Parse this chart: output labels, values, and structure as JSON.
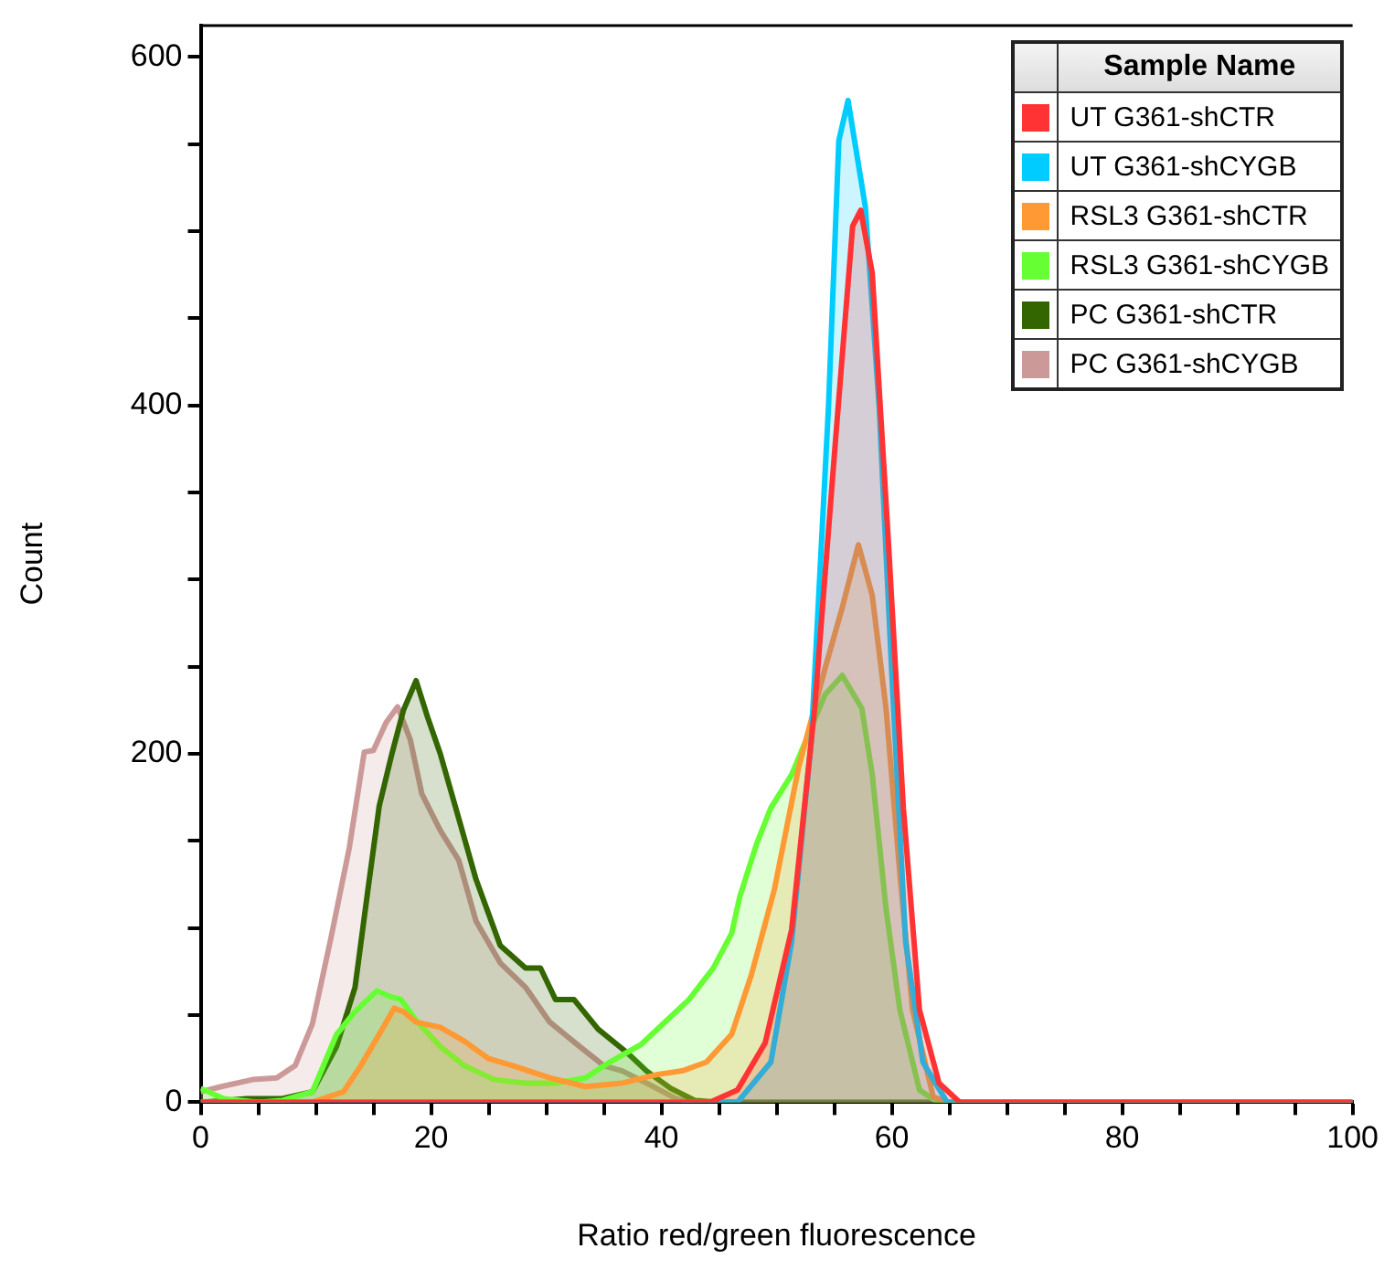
{
  "chart_data": {
    "type": "area",
    "xlabel": "Ratio red/green fluorescence",
    "ylabel": "Count",
    "legend_title": "Sample Name",
    "legend": "top right",
    "grid": false,
    "marker": "none",
    "xlim": [
      0,
      100
    ],
    "ylim": [
      0,
      618
    ],
    "xticks": [
      0,
      {
        "value": 5,
        "label": null
      },
      {
        "value": 10,
        "label": null
      },
      {
        "value": 15,
        "label": null
      },
      20,
      {
        "value": 25,
        "label": null
      },
      {
        "value": 30,
        "label": null
      },
      {
        "value": 35,
        "label": null
      },
      40,
      {
        "value": 45,
        "label": null
      },
      {
        "value": 50,
        "label": null
      },
      {
        "value": 55,
        "label": null
      },
      60,
      {
        "value": 65,
        "label": null
      },
      {
        "value": 70,
        "label": null
      },
      {
        "value": 75,
        "label": null
      },
      80,
      {
        "value": 85,
        "label": null
      },
      {
        "value": 90,
        "label": null
      },
      {
        "value": 95,
        "label": null
      },
      100
    ],
    "yticks": [
      0,
      {
        "value": 50,
        "label": null
      },
      {
        "value": 100,
        "label": null
      },
      {
        "value": 150,
        "label": null
      },
      200,
      {
        "value": 250,
        "label": null
      },
      {
        "value": 300,
        "label": null
      },
      {
        "value": 350,
        "label": null
      },
      400,
      {
        "value": 450,
        "label": null
      },
      {
        "value": 500,
        "label": null
      },
      {
        "value": 550,
        "label": null
      },
      600
    ],
    "series": [
      {
        "name": "UT G361-shCTR",
        "color": "#ff3333",
        "x": [
          0,
          44.2,
          46.6,
          49,
          51.3,
          53.3,
          55.1,
          56.6,
          57.3,
          58.3,
          59.7,
          61,
          62.4,
          64.1,
          65.9,
          100
        ],
        "values": [
          0,
          0,
          7,
          34,
          99,
          226,
          379,
          503,
          512,
          476,
          322,
          169,
          53,
          11,
          0,
          0
        ]
      },
      {
        "name": "UT G361-shCYGB",
        "color": "#00ccff",
        "x": [
          0,
          46.6,
          49.5,
          51.3,
          53,
          54.5,
          55.4,
          56.2,
          57.7,
          58.9,
          60,
          61.2,
          62.7,
          64.8,
          100
        ],
        "values": [
          0,
          0,
          23,
          92,
          207,
          399,
          552,
          575,
          514,
          399,
          246,
          92,
          23,
          0,
          0
        ]
      },
      {
        "name": "RSL3 G361-shCTR",
        "color": "#ff9933",
        "x": [
          0,
          9.7,
          12.4,
          13.9,
          15.5,
          16.8,
          17.6,
          18.7,
          20.8,
          22.9,
          25,
          27.1,
          30.3,
          33.4,
          36.6,
          39.7,
          41.8,
          43.9,
          46.1,
          47.8,
          49.8,
          51.9,
          54.2,
          55.7,
          57.1,
          58.3,
          59.5,
          60.7,
          61.8,
          63.6,
          65,
          100
        ],
        "values": [
          0,
          0,
          6,
          21,
          39,
          54,
          52,
          46,
          43,
          35,
          25,
          21,
          14,
          9,
          11,
          16,
          18,
          23,
          39,
          73,
          122,
          192,
          249,
          284,
          320,
          291,
          226,
          131,
          53,
          3,
          0,
          0
        ]
      },
      {
        "name": "RSL3 G361-shCYGB",
        "color": "#66ff33",
        "x": [
          0,
          2,
          5,
          7.1,
          9.7,
          11.8,
          13.4,
          15.3,
          16.3,
          17.4,
          18.7,
          20.8,
          22.9,
          25.5,
          28.2,
          30.8,
          33.4,
          35.5,
          38.2,
          40.3,
          42.4,
          44.5,
          46.1,
          46.8,
          48.3,
          49.5,
          51.3,
          54.2,
          55.7,
          57.4,
          58.3,
          59.5,
          60.7,
          62.4,
          64,
          100
        ],
        "values": [
          8,
          2,
          0,
          1,
          6,
          39,
          52,
          64,
          61,
          59,
          47,
          32,
          21,
          13,
          11,
          11,
          14,
          23,
          33,
          46,
          59,
          77,
          97,
          118,
          149,
          169,
          188,
          234,
          245,
          226,
          188,
          111,
          53,
          7,
          0,
          0
        ]
      },
      {
        "name": "PC G361-shCTR",
        "color": "#336600",
        "x": [
          0,
          4,
          7,
          9.7,
          11.8,
          13.4,
          14.5,
          15.5,
          16.6,
          17.6,
          18.7,
          19.7,
          20.8,
          22.4,
          23.9,
          26,
          28.2,
          29.5,
          30.8,
          32.4,
          34.5,
          37.1,
          38.7,
          40.8,
          42.9,
          45,
          100
        ],
        "values": [
          0,
          2,
          2,
          6,
          32,
          66,
          121,
          170,
          200,
          225,
          242,
          221,
          200,
          163,
          128,
          90,
          77,
          77,
          59,
          59,
          42,
          28,
          18,
          8,
          1,
          0,
          0
        ]
      },
      {
        "name": "PC G361-shCYGB",
        "color": "#cc9999",
        "x": [
          0,
          1.8,
          4.5,
          6.6,
          8.2,
          9.7,
          11.3,
          12.9,
          14.2,
          15,
          16.1,
          17.1,
          18.2,
          19.2,
          20.8,
          22.4,
          23.9,
          26,
          28.2,
          30.3,
          32.9,
          35,
          36.6,
          38.7,
          41.3,
          43,
          100
        ],
        "values": [
          6,
          9,
          13,
          14,
          21,
          45,
          94,
          146,
          201,
          202,
          218,
          227,
          208,
          177,
          156,
          139,
          104,
          80,
          66,
          46,
          32,
          21,
          18,
          11,
          2,
          0,
          0
        ]
      }
    ]
  }
}
